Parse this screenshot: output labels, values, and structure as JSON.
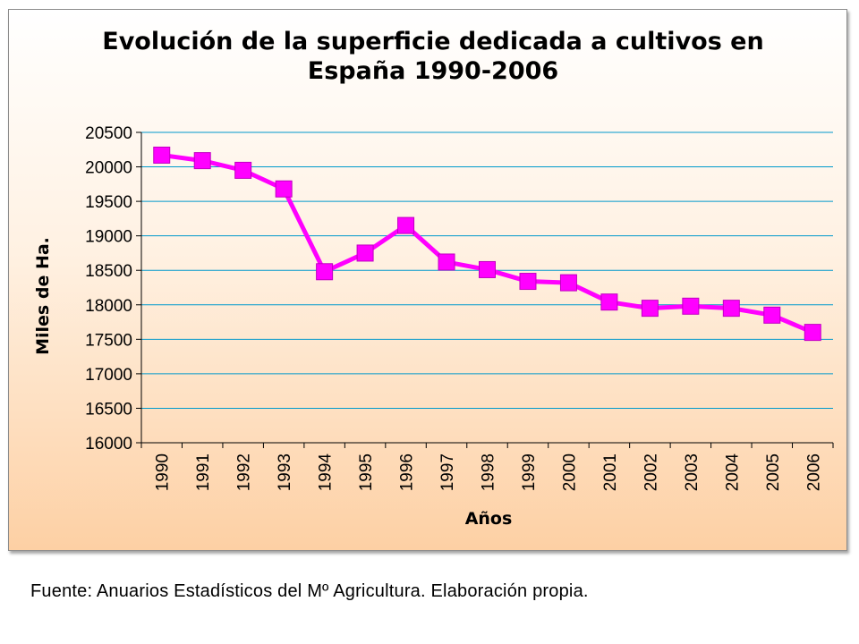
{
  "chart_data": {
    "type": "line",
    "title_lines": [
      "Evolución de la superficie dedicada a cultivos en",
      "España 1990-2006"
    ],
    "xlabel": "Años",
    "ylabel": "Miles de Ha.",
    "categories": [
      "1990",
      "1991",
      "1992",
      "1993",
      "1994",
      "1995",
      "1996",
      "1997",
      "1998",
      "1999",
      "2000",
      "2001",
      "2002",
      "2003",
      "2004",
      "2005",
      "2006"
    ],
    "series": [
      {
        "values": [
          20170,
          20090,
          19950,
          19680,
          18480,
          18750,
          19150,
          18620,
          18510,
          18340,
          18320,
          18040,
          17950,
          17980,
          17950,
          17850,
          17600
        ],
        "color": "#ff00ff",
        "marker": "square"
      }
    ],
    "ylim": [
      16000,
      20500
    ],
    "yticks": [
      16000,
      16500,
      17000,
      17500,
      18000,
      18500,
      19000,
      19500,
      20000,
      20500
    ],
    "grid": true,
    "legend": "none"
  },
  "source_note": "Fuente: Anuarios Estadísticos del Mº Agricultura. Elaboración propia."
}
